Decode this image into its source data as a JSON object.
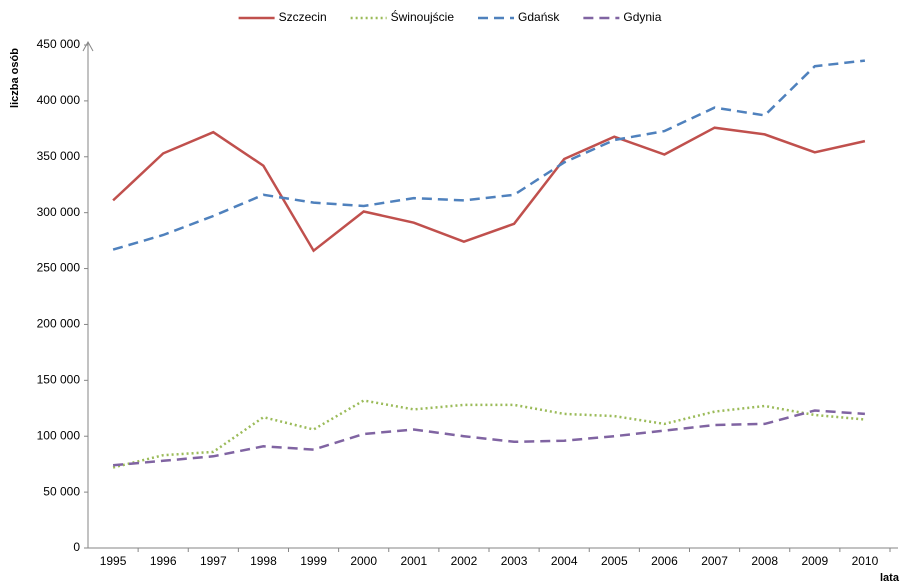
{
  "chart_data": {
    "type": "line",
    "y_label": "liczba osób",
    "x_label": "lata",
    "categories": [
      "1995",
      "1996",
      "1997",
      "1998",
      "1999",
      "2000",
      "2001",
      "2002",
      "2003",
      "2004",
      "2005",
      "2006",
      "2007",
      "2008",
      "2009",
      "2010"
    ],
    "series": [
      {
        "name": "Szczecin",
        "color": "#c0504d",
        "line_style": "solid",
        "values": [
          311000,
          353000,
          372000,
          342000,
          266000,
          301000,
          291000,
          274000,
          290000,
          348000,
          368000,
          352000,
          376000,
          370000,
          354000,
          364000
        ]
      },
      {
        "name": "Świnoujście",
        "color": "#9bbb59",
        "line_style": "dotted",
        "values": [
          72000,
          83000,
          86000,
          117000,
          106000,
          132000,
          124000,
          128000,
          128000,
          120000,
          118000,
          111000,
          122000,
          127000,
          119000,
          115000
        ]
      },
      {
        "name": "Gdańsk",
        "color": "#4f81bd",
        "line_style": "dashed",
        "values": [
          267000,
          280000,
          297000,
          316000,
          309000,
          306000,
          313000,
          311000,
          316000,
          345000,
          365000,
          373000,
          394000,
          387000,
          431000,
          436000
        ]
      },
      {
        "name": "Gdynia",
        "color": "#8064a2",
        "line_style": "dashed",
        "values": [
          74000,
          78000,
          82000,
          91000,
          88000,
          102000,
          106000,
          100000,
          95000,
          96000,
          100000,
          105000,
          110000,
          111000,
          123000,
          120000
        ]
      }
    ],
    "ylim": [
      0,
      450000
    ],
    "yticks": [
      0,
      {
        "value": 50000,
        "label": "50 000"
      },
      {
        "value": 100000,
        "label": "100 000"
      },
      {
        "value": 150000,
        "label": "150 000"
      },
      {
        "value": 200000,
        "label": "200 000"
      },
      {
        "value": 250000,
        "label": "250 000"
      },
      {
        "value": 300000,
        "label": "300 000"
      },
      {
        "value": 350000,
        "label": "350 000"
      },
      {
        "value": 400000,
        "label": "400 000"
      },
      {
        "value": 450000,
        "label": "450 000"
      }
    ],
    "grid": false,
    "legend": "top"
  }
}
